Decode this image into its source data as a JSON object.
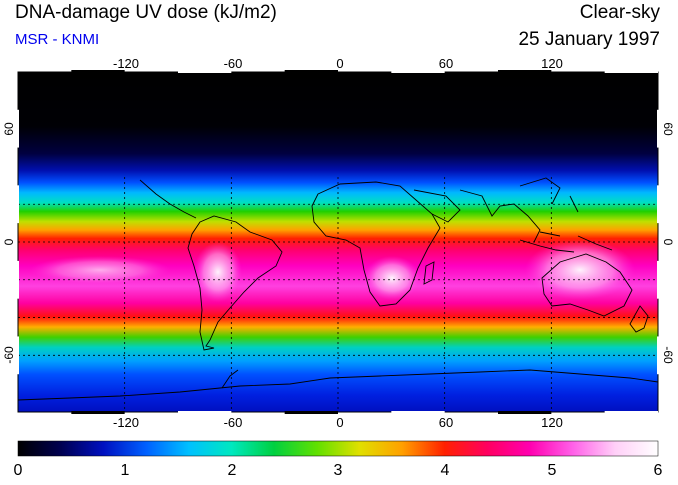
{
  "header": {
    "title": "DNA-damage UV dose (kJ/m2)",
    "source": "MSR - KNMI",
    "condition": "Clear-sky",
    "date": "25 January 1997"
  },
  "map": {
    "lon_ticks": [
      "-120",
      "-60",
      "0",
      "60",
      "120"
    ],
    "lat_ticks": [
      "60",
      "0",
      "-60"
    ],
    "lon_range": [
      -180,
      180
    ],
    "lat_range": [
      -90,
      90
    ],
    "grid_lon_step": 30,
    "grid_lat_step": 20
  },
  "colorbar": {
    "labels": [
      "0",
      "1",
      "2",
      "3",
      "4",
      "5",
      "6"
    ],
    "colors": [
      "#000000",
      "#000050",
      "#0010c0",
      "#0060ff",
      "#00c0ff",
      "#00e8c0",
      "#00d040",
      "#60e000",
      "#e0e000",
      "#ffa000",
      "#ff2000",
      "#ff0060",
      "#ff00b0",
      "#ff60e8",
      "#ffd0f8",
      "#ffffff"
    ]
  }
}
